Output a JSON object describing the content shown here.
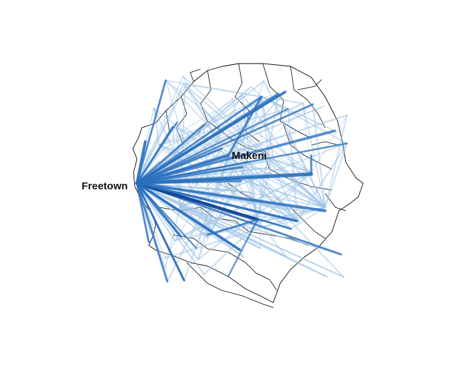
{
  "map": {
    "labels": {
      "freetown": "Freetown",
      "makeni": "Makeni"
    },
    "colors": {
      "flow_dark": "#0b3d91",
      "flow_mid": "#2a6fbe",
      "flow_light": "#9ec3e6",
      "boundary": "#000000",
      "background": "#ffffff"
    }
  }
}
